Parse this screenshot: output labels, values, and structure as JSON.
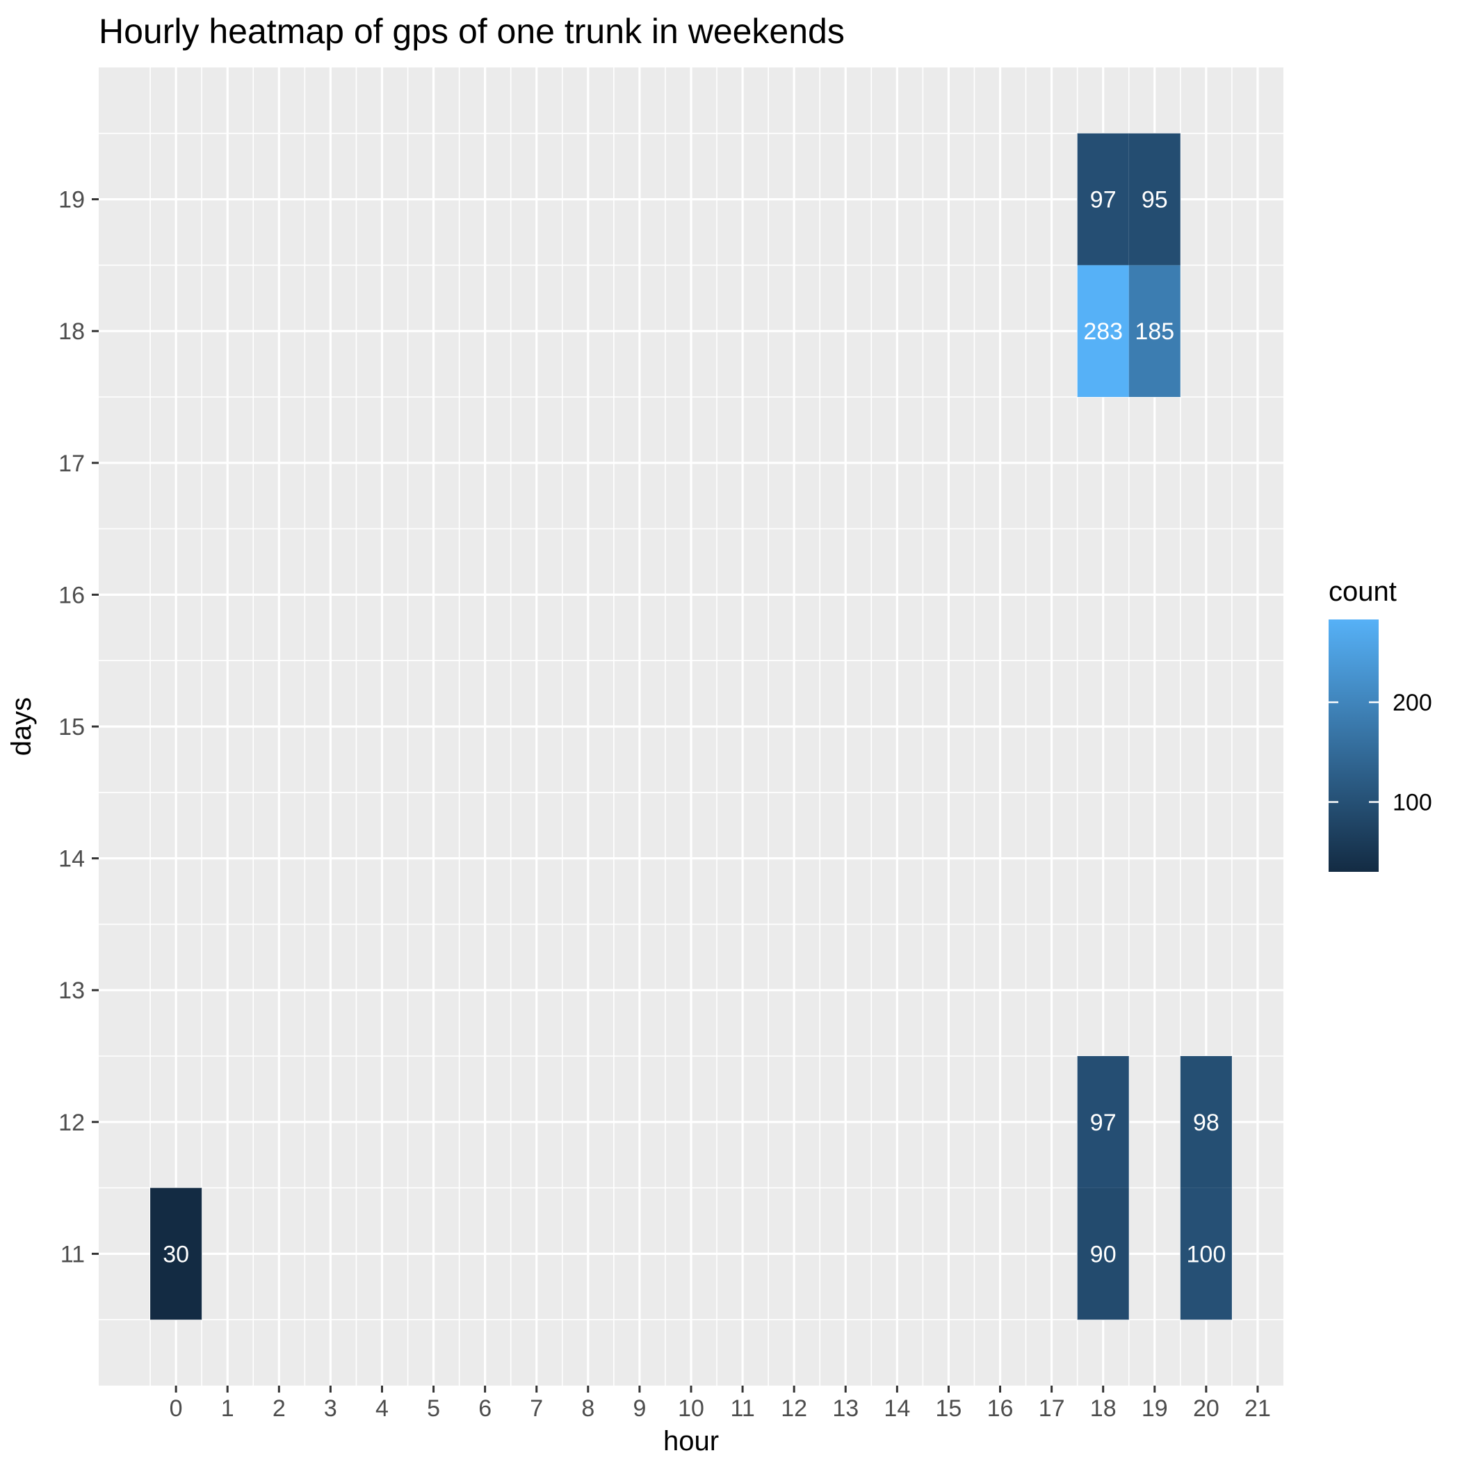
{
  "chart_data": {
    "type": "heatmap",
    "title": "Hourly heatmap of gps of one trunk in weekends",
    "xlabel": "hour",
    "ylabel": "days",
    "x_ticks": [
      0,
      1,
      2,
      3,
      4,
      5,
      6,
      7,
      8,
      9,
      10,
      11,
      12,
      13,
      14,
      15,
      16,
      17,
      18,
      19,
      20,
      21
    ],
    "y_ticks": [
      11,
      12,
      13,
      14,
      15,
      16,
      17,
      18,
      19
    ],
    "xlim": [
      -1.5,
      21.5
    ],
    "ylim": [
      10,
      20
    ],
    "grid": true,
    "cells": [
      {
        "hour": 0,
        "day": 11,
        "count": 30
      },
      {
        "hour": 18,
        "day": 11,
        "count": 90
      },
      {
        "hour": 20,
        "day": 11,
        "count": 100
      },
      {
        "hour": 18,
        "day": 12,
        "count": 97
      },
      {
        "hour": 20,
        "day": 12,
        "count": 98
      },
      {
        "hour": 18,
        "day": 18,
        "count": 283
      },
      {
        "hour": 19,
        "day": 18,
        "count": 185
      },
      {
        "hour": 18,
        "day": 19,
        "count": 97
      },
      {
        "hour": 19,
        "day": 19,
        "count": 95
      }
    ],
    "legend": {
      "title": "count",
      "position": "right",
      "breaks": [
        100,
        200
      ],
      "min": 30,
      "max": 283,
      "low_color": "#132B43",
      "high_color": "#56B1F7"
    },
    "colors": {
      "panel_background": "#EBEBEB",
      "grid_major": "#FFFFFF",
      "cell_text": "#FFFFFF",
      "tick_text": "#4D4D4D"
    }
  }
}
